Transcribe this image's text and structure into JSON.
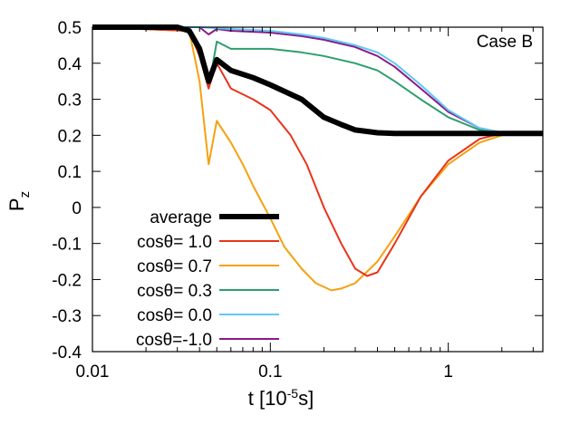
{
  "chart_data": {
    "type": "line",
    "annotation": "Case B",
    "xlabel": "t [10",
    "xlabel_sup": "-5",
    "xlabel_tail": "s]",
    "ylabel": "P",
    "ylabel_sub": "z",
    "x_scale": "log",
    "xlim": [
      0.01,
      3.4
    ],
    "ylim": [
      -0.4,
      0.5
    ],
    "x_ticks": [
      {
        "value": 0.01,
        "label": "0.01"
      },
      {
        "value": 0.1,
        "label": "0.1"
      },
      {
        "value": 1,
        "label": "1"
      }
    ],
    "y_ticks": [
      {
        "value": 0.5,
        "label": "0.5"
      },
      {
        "value": 0.4,
        "label": "0.4"
      },
      {
        "value": 0.3,
        "label": "0.3"
      },
      {
        "value": 0.2,
        "label": "0.2"
      },
      {
        "value": 0.1,
        "label": "0.1"
      },
      {
        "value": 0.0,
        "label": "0"
      },
      {
        "value": -0.1,
        "label": "-0.1"
      },
      {
        "value": -0.2,
        "label": "-0.2"
      },
      {
        "value": -0.3,
        "label": "-0.3"
      },
      {
        "value": -0.4,
        "label": "-0.4"
      }
    ],
    "grid": false,
    "legend_position": "bottom-left",
    "series": [
      {
        "name": "average",
        "color": "#000000",
        "width": 6,
        "x": [
          0.01,
          0.03,
          0.035,
          0.04,
          0.045,
          0.05,
          0.06,
          0.08,
          0.1,
          0.15,
          0.2,
          0.25,
          0.3,
          0.4,
          0.5,
          1,
          2,
          3.4
        ],
        "y": [
          0.5,
          0.5,
          0.49,
          0.44,
          0.35,
          0.41,
          0.38,
          0.36,
          0.34,
          0.3,
          0.25,
          0.23,
          0.215,
          0.207,
          0.205,
          0.205,
          0.205,
          0.205
        ]
      },
      {
        "name": "cosθ= 1.0",
        "color": "#e8341c",
        "width": 2,
        "x": [
          0.01,
          0.035,
          0.04,
          0.045,
          0.05,
          0.06,
          0.08,
          0.1,
          0.13,
          0.16,
          0.2,
          0.25,
          0.3,
          0.35,
          0.4,
          0.5,
          0.7,
          1,
          1.5,
          2,
          3.4
        ],
        "y": [
          0.5,
          0.49,
          0.42,
          0.33,
          0.4,
          0.33,
          0.3,
          0.27,
          0.2,
          0.12,
          0.0,
          -0.1,
          -0.17,
          -0.19,
          -0.18,
          -0.1,
          0.03,
          0.13,
          0.19,
          0.205,
          0.205
        ]
      },
      {
        "name": "cosθ= 0.7",
        "color": "#f5a10f",
        "width": 2,
        "x": [
          0.01,
          0.035,
          0.04,
          0.045,
          0.05,
          0.06,
          0.07,
          0.08,
          0.1,
          0.12,
          0.15,
          0.18,
          0.22,
          0.25,
          0.3,
          0.4,
          0.5,
          0.7,
          1,
          1.5,
          2,
          3.4
        ],
        "y": [
          0.5,
          0.49,
          0.35,
          0.12,
          0.24,
          0.18,
          0.12,
          0.06,
          -0.03,
          -0.11,
          -0.17,
          -0.21,
          -0.23,
          -0.225,
          -0.21,
          -0.15,
          -0.08,
          0.03,
          0.12,
          0.18,
          0.2,
          0.205
        ]
      },
      {
        "name": "cosθ= 0.3",
        "color": "#2e9e6e",
        "width": 2,
        "x": [
          0.01,
          0.035,
          0.04,
          0.045,
          0.05,
          0.06,
          0.08,
          0.1,
          0.15,
          0.2,
          0.3,
          0.4,
          0.5,
          0.7,
          1,
          1.5,
          2,
          3.4
        ],
        "y": [
          0.5,
          0.49,
          0.42,
          0.33,
          0.46,
          0.44,
          0.44,
          0.44,
          0.43,
          0.42,
          0.4,
          0.38,
          0.35,
          0.3,
          0.25,
          0.215,
          0.205,
          0.205
        ]
      },
      {
        "name": "cosθ= 0.0",
        "color": "#5fc8f5",
        "width": 2,
        "x": [
          0.01,
          0.04,
          0.06,
          0.1,
          0.15,
          0.2,
          0.3,
          0.4,
          0.5,
          0.7,
          1,
          1.5,
          2,
          3.4
        ],
        "y": [
          0.5,
          0.5,
          0.495,
          0.49,
          0.48,
          0.47,
          0.45,
          0.43,
          0.4,
          0.34,
          0.27,
          0.22,
          0.208,
          0.205
        ]
      },
      {
        "name": "cosθ=-1.0",
        "color": "#8b1a8b",
        "width": 2,
        "x": [
          0.01,
          0.04,
          0.045,
          0.05,
          0.06,
          0.1,
          0.15,
          0.2,
          0.3,
          0.4,
          0.5,
          0.7,
          1,
          1.5,
          2,
          3.4
        ],
        "y": [
          0.5,
          0.5,
          0.48,
          0.495,
          0.49,
          0.485,
          0.475,
          0.465,
          0.445,
          0.42,
          0.39,
          0.33,
          0.265,
          0.22,
          0.208,
          0.205
        ]
      }
    ]
  }
}
